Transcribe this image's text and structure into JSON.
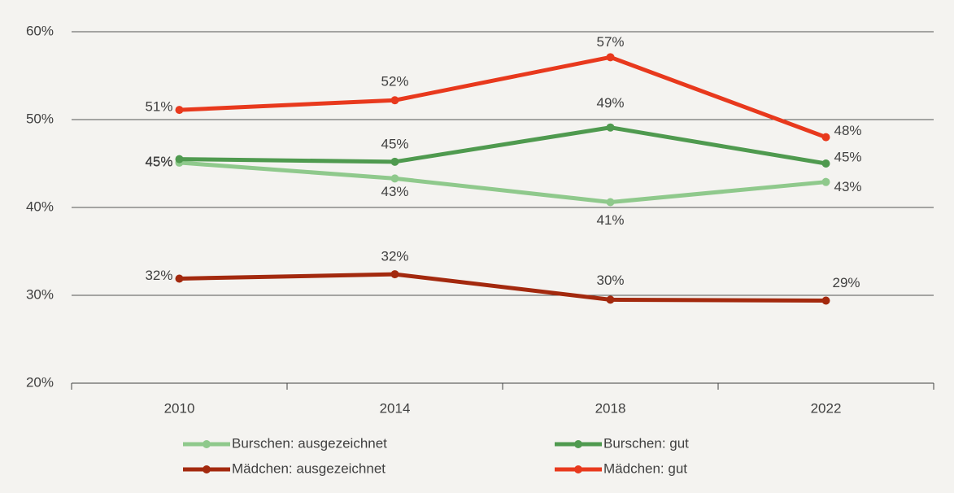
{
  "chart_data": {
    "type": "line",
    "categories": [
      "2010",
      "2014",
      "2018",
      "2022"
    ],
    "series": [
      {
        "name": "Burschen: ausgezeichnet",
        "color": "#8fc98c",
        "values": [
          45.1,
          43.3,
          40.6,
          42.9
        ],
        "value_labels": [
          "45%",
          "43%",
          "41%",
          "43%"
        ]
      },
      {
        "name": "Burschen: gut",
        "color": "#4f9a4f",
        "values": [
          45.5,
          45.2,
          49.1,
          45.0
        ],
        "value_labels": [
          "45%",
          "45%",
          "49%",
          "45%"
        ]
      },
      {
        "name": "Mädchen: ausgezeichnet",
        "color": "#a3290e",
        "values": [
          31.9,
          32.4,
          29.5,
          29.4
        ],
        "value_labels": [
          "32%",
          "32%",
          "30%",
          "29%"
        ]
      },
      {
        "name": "Mädchen: gut",
        "color": "#e8391d",
        "values": [
          51.1,
          52.2,
          57.1,
          48.0
        ],
        "value_labels": [
          "51%",
          "52%",
          "57%",
          "48%"
        ]
      }
    ],
    "ylim": [
      20,
      60
    ],
    "yticks": [
      {
        "value": 20,
        "label": "20%"
      },
      {
        "value": 30,
        "label": "30%"
      },
      {
        "value": 40,
        "label": "40%"
      },
      {
        "value": 50,
        "label": "50%"
      },
      {
        "value": 60,
        "label": "60%"
      }
    ],
    "grid": true,
    "legend": "bottom"
  }
}
